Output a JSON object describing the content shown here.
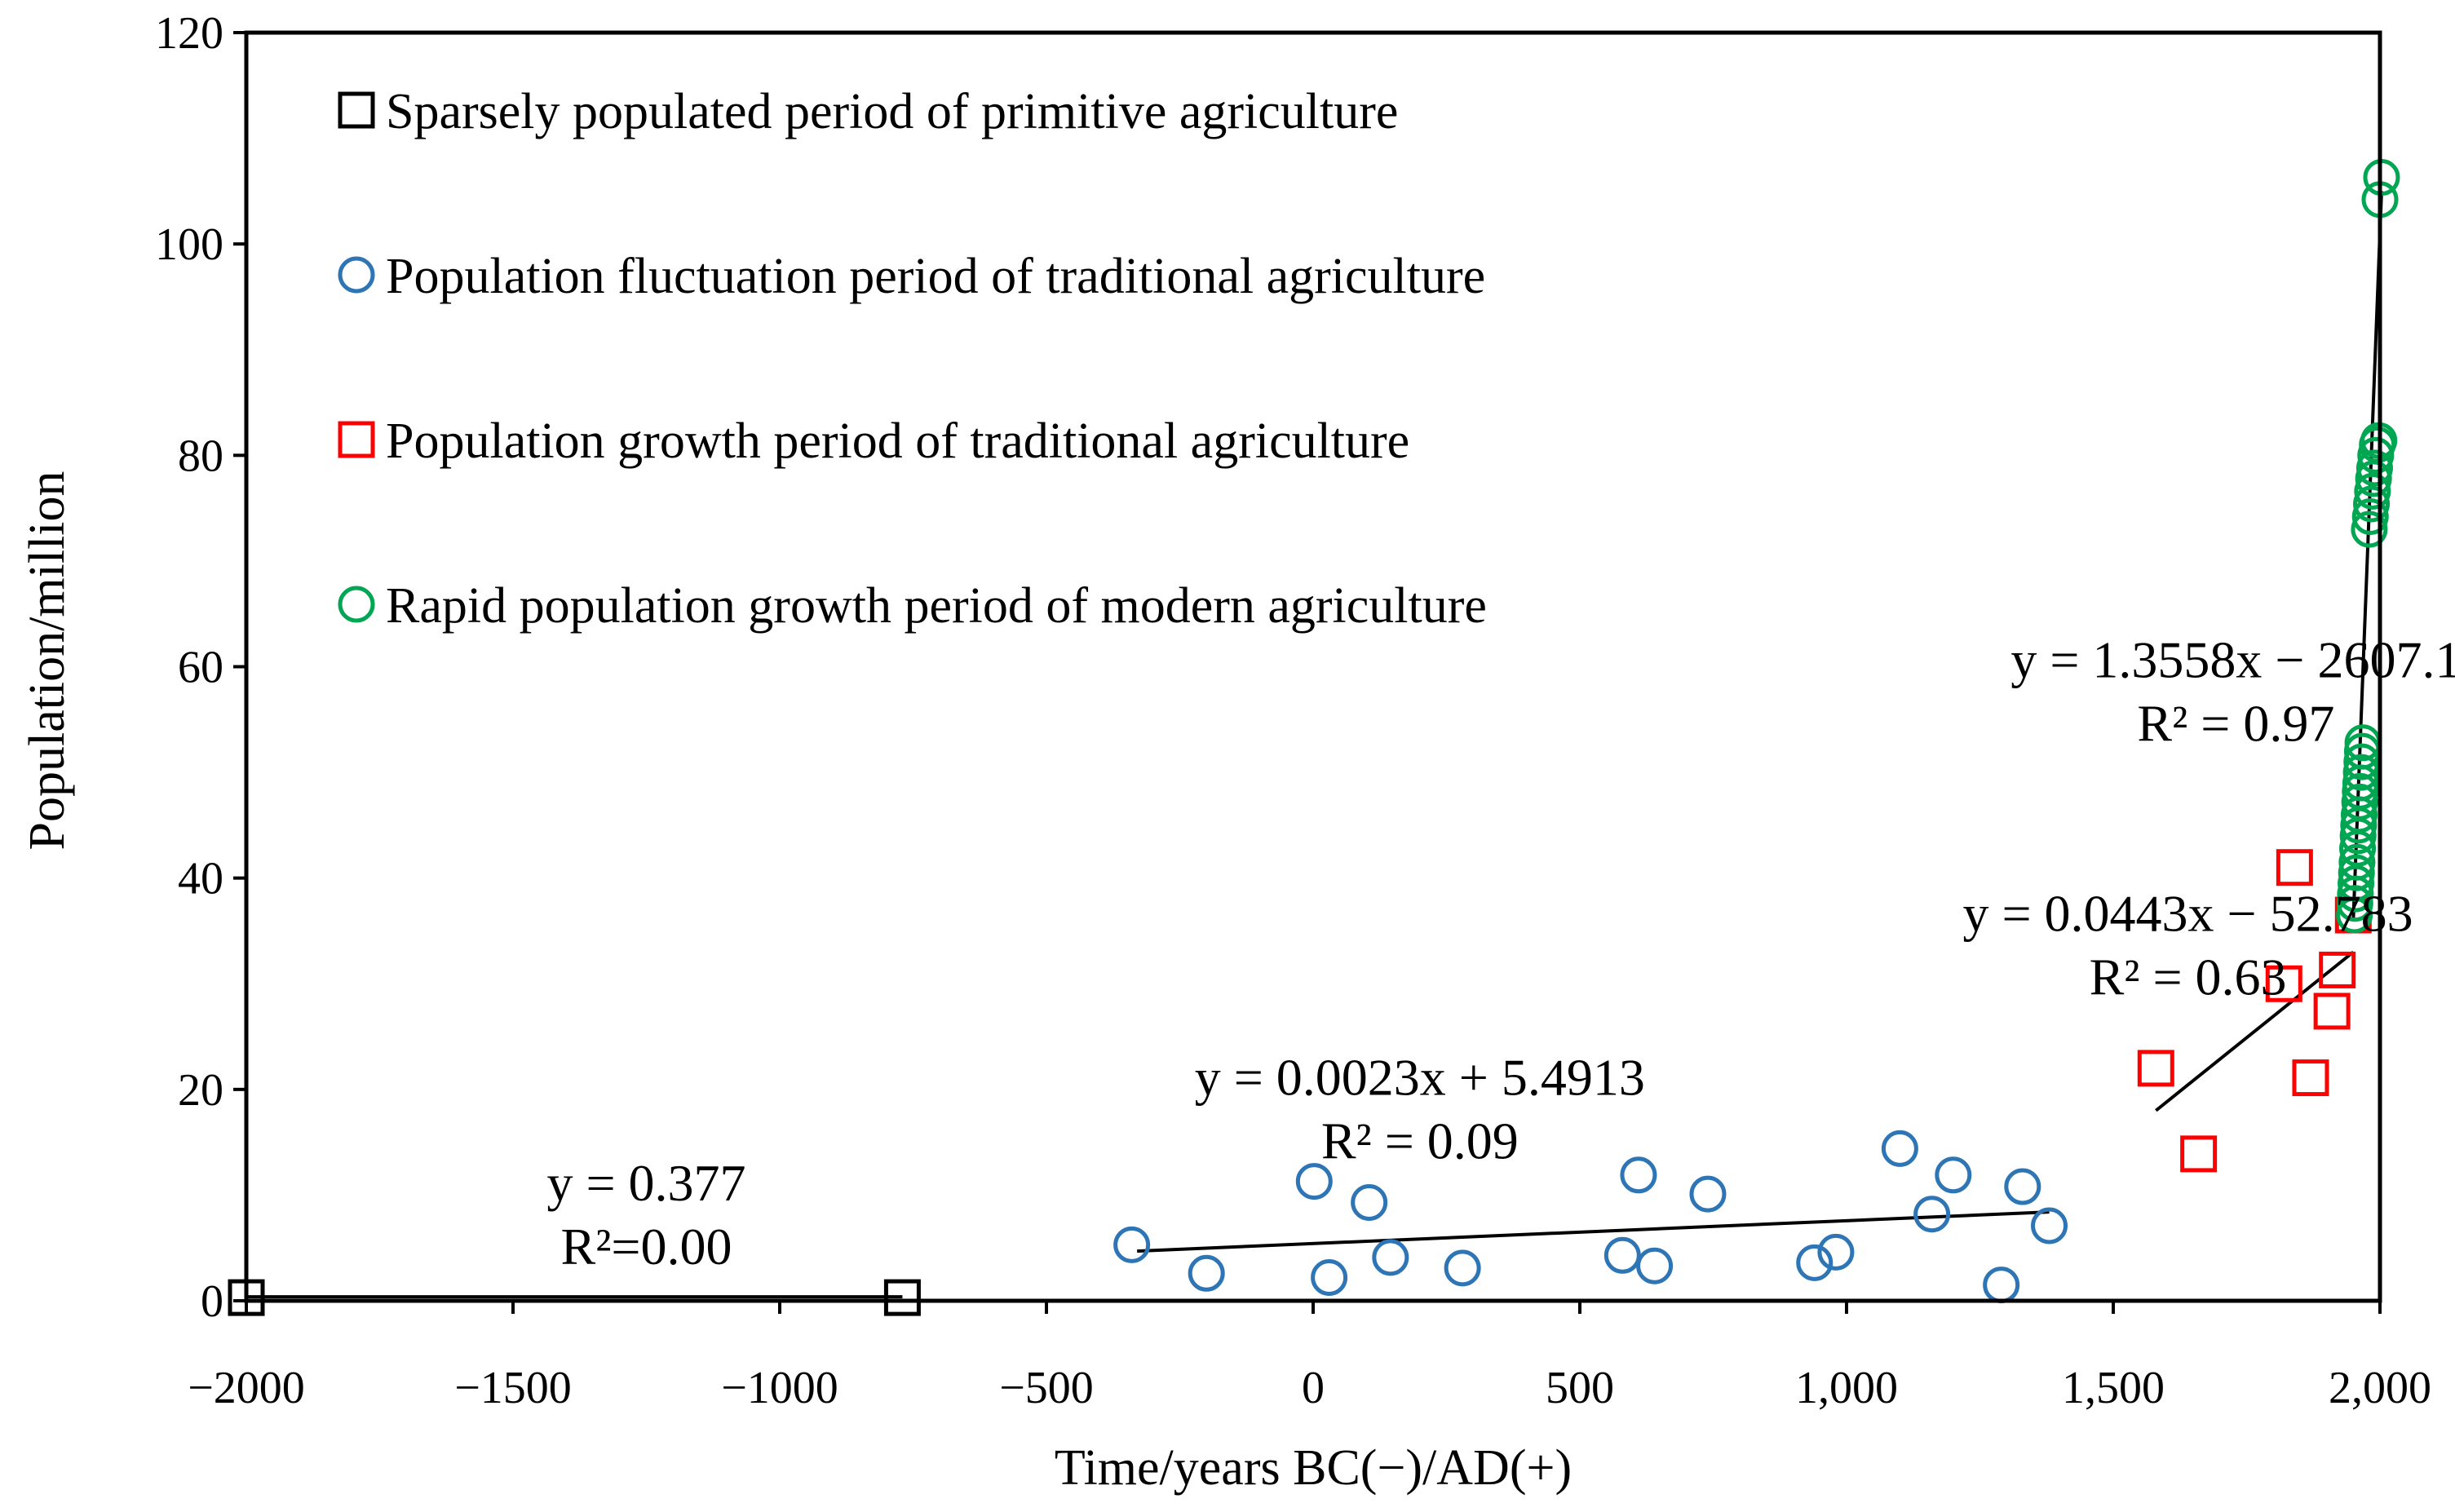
{
  "chart_data": {
    "type": "scatter",
    "title": "",
    "xlabel": "Time/years BC(−)/AD(+)",
    "ylabel": "Population/million",
    "xlim": [
      -2000,
      2000
    ],
    "ylim": [
      0,
      120
    ],
    "x_tick_labels": [
      {
        "value": -2000,
        "label": "−2000"
      },
      {
        "value": -1500,
        "label": "−1500"
      },
      {
        "value": -1000,
        "label": "−1000"
      },
      {
        "value": -500,
        "label": "−500"
      },
      {
        "value": 0,
        "label": "0"
      },
      {
        "value": 500,
        "label": "500"
      },
      {
        "value": 1000,
        "label": "1,000"
      },
      {
        "value": 1500,
        "label": "1,500"
      },
      {
        "value": 2000,
        "label": "2,000"
      }
    ],
    "y_tick_labels": [
      {
        "value": 0,
        "label": "0"
      },
      {
        "value": 20,
        "label": "20"
      },
      {
        "value": 40,
        "label": "40"
      },
      {
        "value": 60,
        "label": "60"
      },
      {
        "value": 80,
        "label": "80"
      },
      {
        "value": 100,
        "label": "100"
      },
      {
        "value": 120,
        "label": "120"
      }
    ],
    "grid": false,
    "legend_position": "top-left",
    "series": [
      {
        "name": "Sparsely populated period of primitive agriculture",
        "marker": "square",
        "color": "#000000",
        "points": [
          [
            -2000,
            0.3
          ],
          [
            -770,
            0.3
          ]
        ]
      },
      {
        "name": "Population fluctuation period of traditional agriculture",
        "marker": "circle",
        "color": "#2e75b6",
        "points": [
          [
            -340,
            5.3
          ],
          [
            -200,
            2.6
          ],
          [
            2,
            11.3
          ],
          [
            30,
            2.2
          ],
          [
            105,
            9.3
          ],
          [
            145,
            4.1
          ],
          [
            280,
            3.1
          ],
          [
            580,
            4.3
          ],
          [
            610,
            11.9
          ],
          [
            640,
            3.3
          ],
          [
            740,
            10.1
          ],
          [
            940,
            3.6
          ],
          [
            980,
            4.6
          ],
          [
            1100,
            14.4
          ],
          [
            1160,
            8.2
          ],
          [
            1200,
            11.9
          ],
          [
            1290,
            1.5
          ],
          [
            1330,
            10.8
          ],
          [
            1380,
            7.1
          ]
        ]
      },
      {
        "name": "Population growth period of traditional agriculture",
        "marker": "square",
        "color": "#ff0000",
        "points": [
          [
            1580,
            22.0
          ],
          [
            1660,
            13.9
          ],
          [
            1820,
            30.0
          ],
          [
            1840,
            41.0
          ],
          [
            1870,
            21.1
          ],
          [
            1910,
            27.4
          ],
          [
            1920,
            31.3
          ],
          [
            1950,
            36.5
          ]
        ]
      },
      {
        "name": "Rapid population growth period of modern agriculture",
        "marker": "circle",
        "color": "#00a651",
        "points": [
          [
            1952,
            36.5
          ],
          [
            1953,
            37.6
          ],
          [
            1954,
            38.5
          ],
          [
            1955,
            39.5
          ],
          [
            1956,
            40.5
          ],
          [
            1957,
            41.5
          ],
          [
            1958,
            42.8
          ],
          [
            1959,
            44.0
          ],
          [
            1960,
            45.0
          ],
          [
            1961,
            46.0
          ],
          [
            1962,
            47.2
          ],
          [
            1963,
            48.2
          ],
          [
            1964,
            49.0
          ],
          [
            1965,
            50.0
          ],
          [
            1966,
            51.0
          ],
          [
            1967,
            52.0
          ],
          [
            1968,
            52.8
          ],
          [
            1980,
            73.0
          ],
          [
            1982,
            74.2
          ],
          [
            1984,
            75.4
          ],
          [
            1986,
            76.6
          ],
          [
            1988,
            77.8
          ],
          [
            1990,
            78.8
          ],
          [
            1992,
            80.0
          ],
          [
            1995,
            81.0
          ],
          [
            1998,
            81.4
          ],
          [
            2000,
            104.2
          ],
          [
            2003,
            106.3
          ]
        ]
      }
    ],
    "trendlines": [
      {
        "x1": -2000,
        "y1": 0.377,
        "x2": -770,
        "y2": 0.377
      },
      {
        "x1": -330,
        "y1": 4.7,
        "x2": 1380,
        "y2": 8.4
      },
      {
        "x1": 1580,
        "y1": 18.0,
        "x2": 1950,
        "y2": 33.0
      },
      {
        "x1": 1950,
        "y1": 36.0,
        "x2": 2003,
        "y2": 105.0
      }
    ],
    "annotations": [
      {
        "line1": "y = 0.377",
        "line2": "R²=0.00",
        "at": [
          -1250,
          9.5
        ]
      },
      {
        "line1": "y = 0.0023x + 5.4913",
        "line2": "R² = 0.09",
        "at": [
          200,
          19.5
        ]
      },
      {
        "line1": "y = 0.0443x − 52.783",
        "line2": "R² = 0.63",
        "at": [
          1640,
          35.0
        ]
      },
      {
        "line1": "y = 1.3558x − 2607.1",
        "line2": "R² = 0.97",
        "at": [
          1730,
          59.0
        ]
      }
    ]
  }
}
